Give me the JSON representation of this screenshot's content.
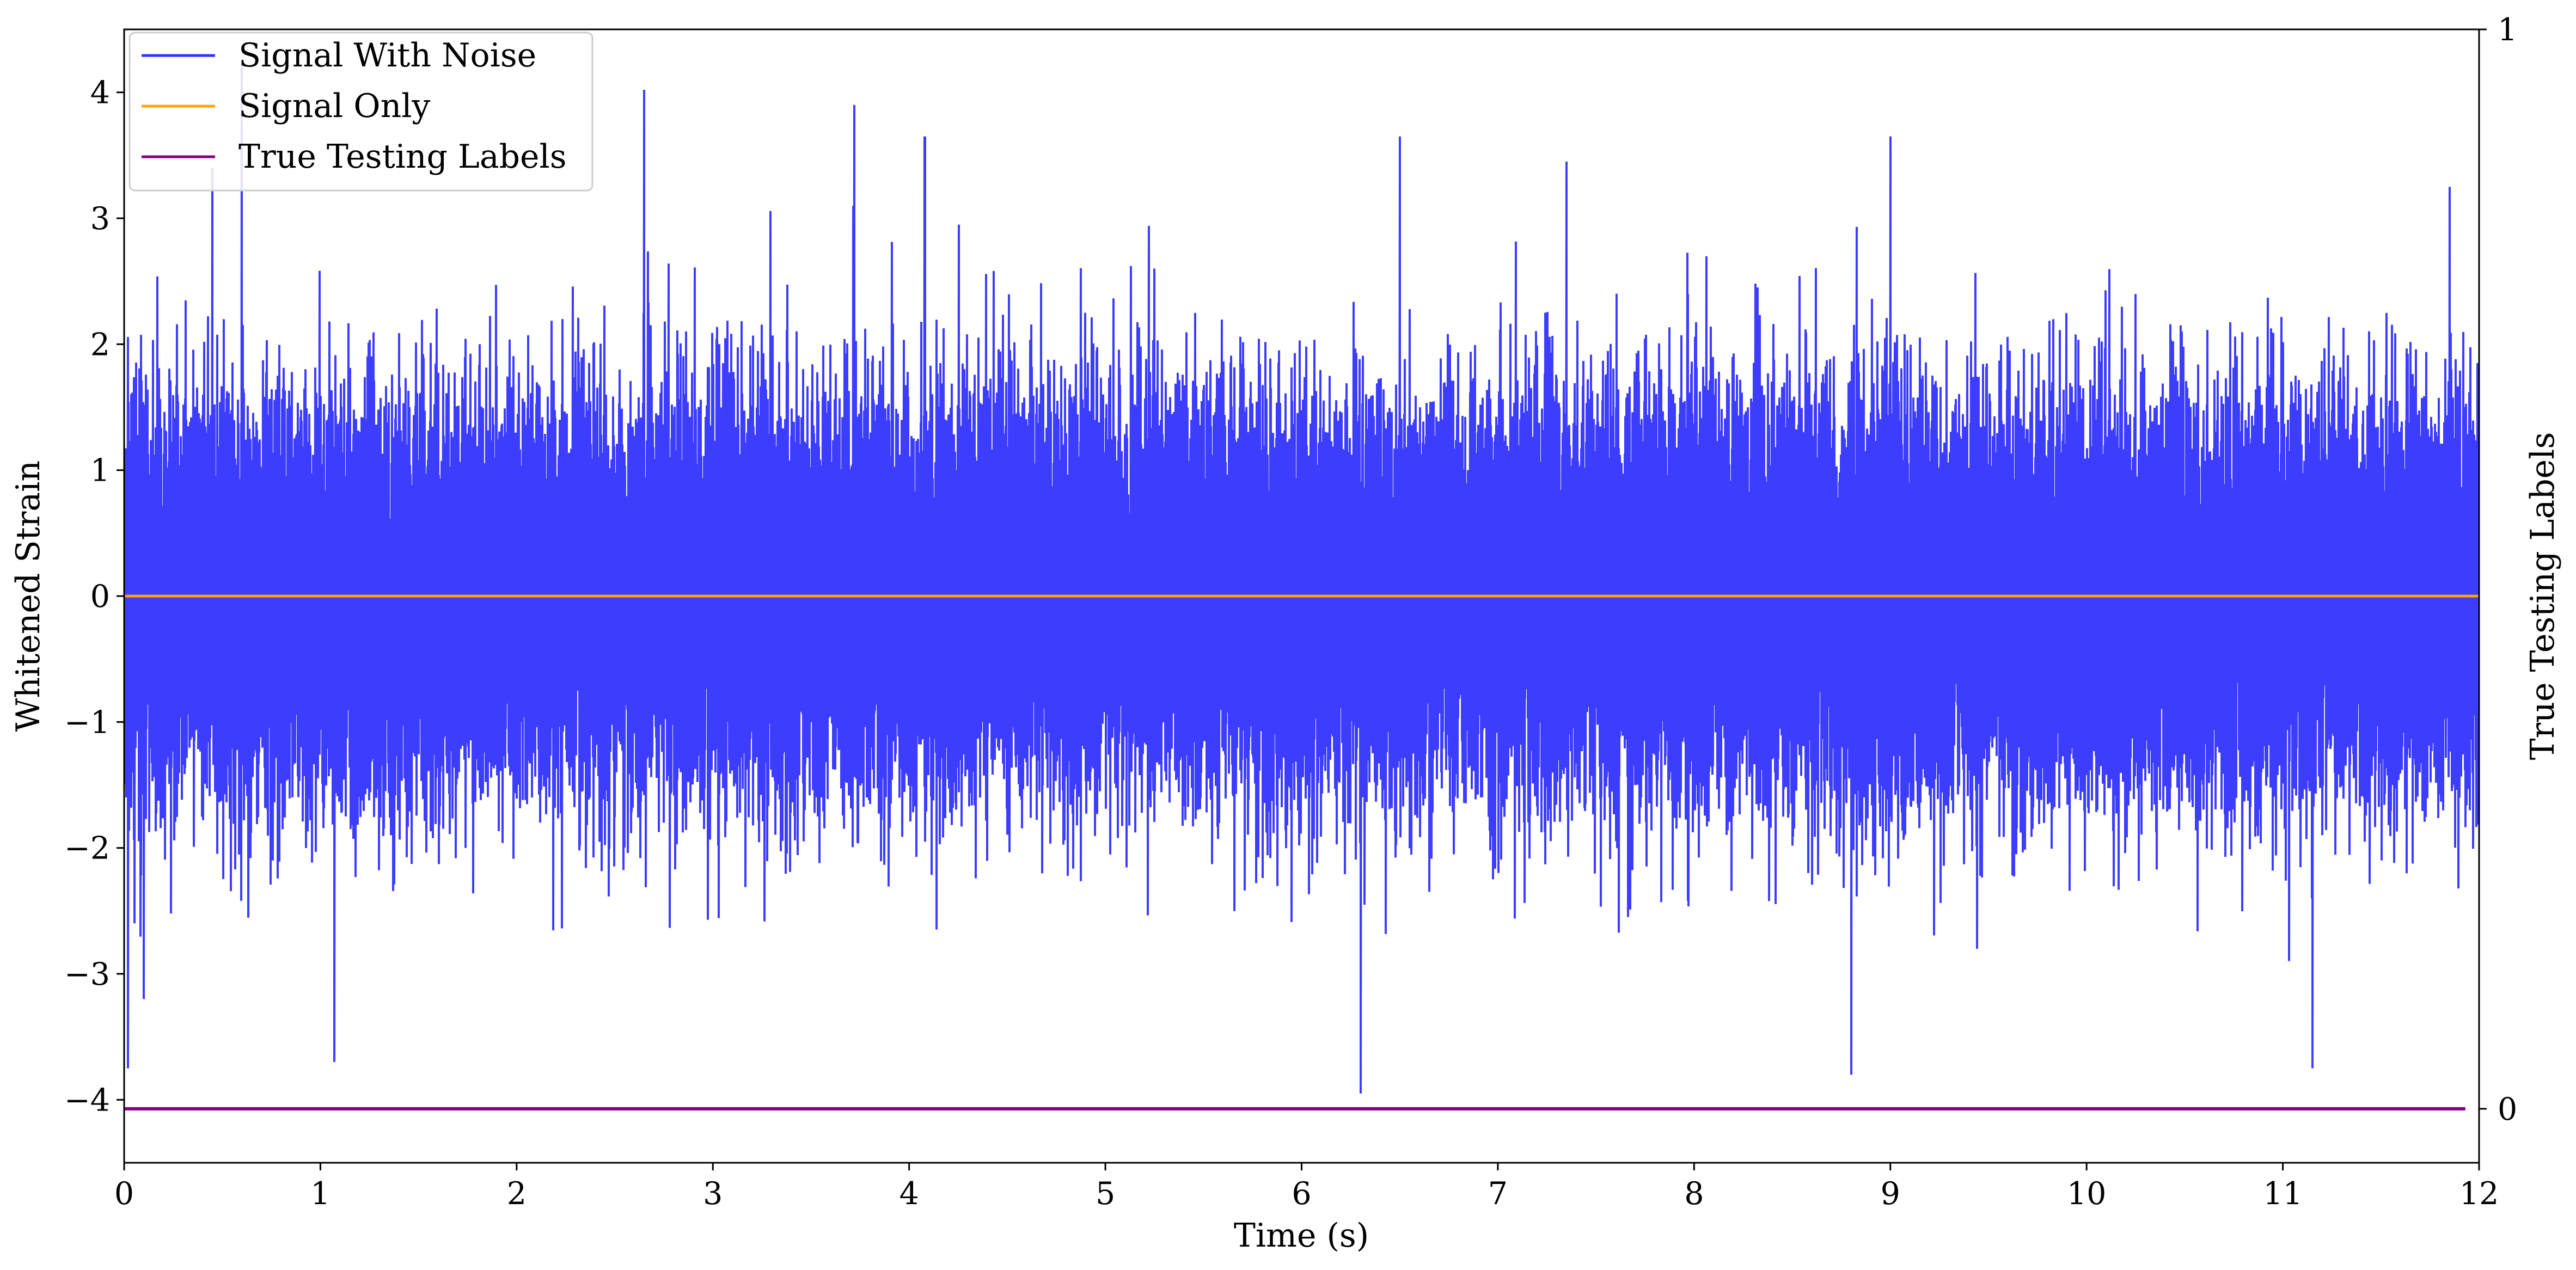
{
  "chart_data": {
    "type": "line",
    "xlabel": "Time (s)",
    "ylabel": "Whitened Strain",
    "y2label": "True Testing Labels",
    "xlim": [
      0,
      12
    ],
    "ylim": [
      -4.5,
      4.5
    ],
    "y2lim": [
      -0.05,
      1.0
    ],
    "x_ticks": [
      "0",
      "1",
      "2",
      "3",
      "4",
      "5",
      "6",
      "7",
      "8",
      "9",
      "10",
      "11",
      "12"
    ],
    "y_ticks": [
      "−4",
      "−3",
      "−2",
      "−1",
      "0",
      "1",
      "2",
      "3",
      "4"
    ],
    "y2_ticks": [
      "0",
      "1"
    ],
    "legend_position": "upper-left",
    "series": [
      {
        "name": "Signal With Noise",
        "color": "#3333ff",
        "axis": "left",
        "description": "dense noise-like waveform sampled over 0–12 s",
        "sample_rate_hz": 2048,
        "approx_std": 0.75,
        "approx_max": 4.2,
        "approx_min": -3.95,
        "peaks": [
          {
            "x": 0.02,
            "y": -3.75
          },
          {
            "x": 0.1,
            "y": -3.2
          },
          {
            "x": 0.45,
            "y": 3.4
          },
          {
            "x": 0.6,
            "y": 4.2
          },
          {
            "x": 1.07,
            "y": -3.7
          },
          {
            "x": 2.65,
            "y": 4.02
          },
          {
            "x": 3.72,
            "y": 3.9
          },
          {
            "x": 4.08,
            "y": 3.65
          },
          {
            "x": 6.3,
            "y": -3.95
          },
          {
            "x": 6.5,
            "y": 3.65
          },
          {
            "x": 7.35,
            "y": 3.45
          },
          {
            "x": 8.8,
            "y": -3.8
          },
          {
            "x": 9.0,
            "y": 3.65
          },
          {
            "x": 11.15,
            "y": -3.75
          },
          {
            "x": 11.85,
            "y": 3.25
          }
        ]
      },
      {
        "name": "Signal Only",
        "color": "#ffa500",
        "axis": "left",
        "x": [
          0,
          12
        ],
        "y": [
          0,
          0
        ]
      },
      {
        "name": "True Testing Labels",
        "color": "#800080",
        "axis": "right",
        "x": [
          0,
          11.93
        ],
        "y": [
          0,
          0
        ]
      }
    ]
  }
}
